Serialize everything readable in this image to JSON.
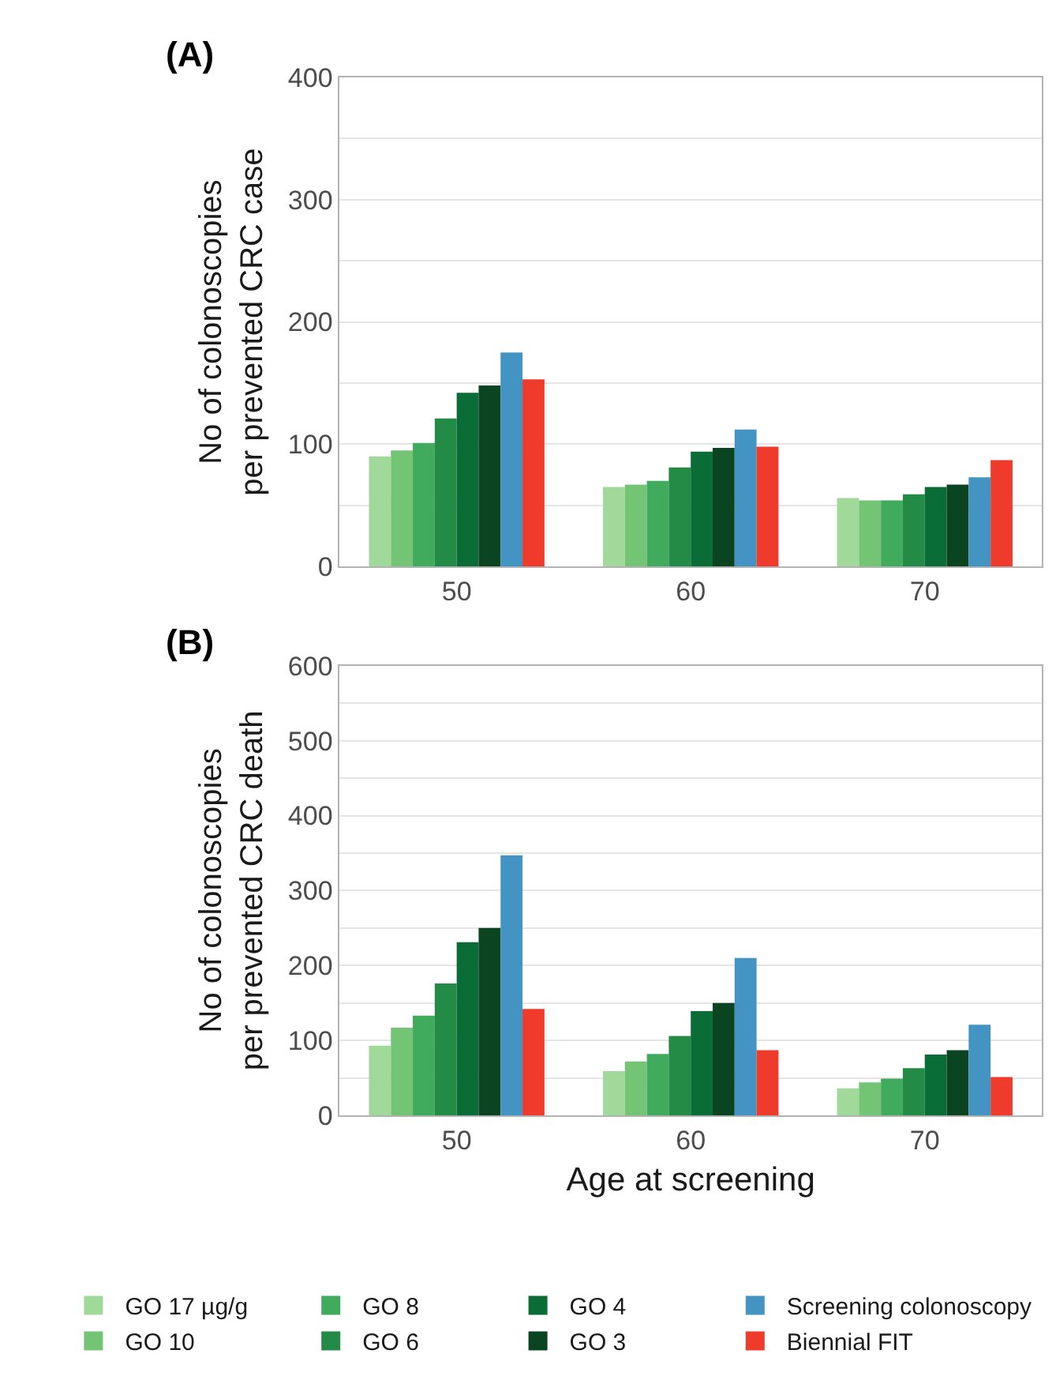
{
  "chart_data": [
    {
      "type": "bar",
      "title": "(A)",
      "ylabel": "No of colonoscopies\nper prevented CRC case",
      "categories": [
        "50",
        "60",
        "70"
      ],
      "ylim": [
        0,
        400
      ],
      "yticks": [
        0,
        {
          "value": 50,
          "label": null
        },
        100,
        {
          "value": 150,
          "label": null
        },
        200,
        {
          "value": 250,
          "label": null
        },
        300,
        {
          "value": 350,
          "label": null
        },
        400
      ],
      "grid": "y",
      "legend": "bottom",
      "series": [
        {
          "name": "GO 17 µg/g",
          "color": "#a1d99b",
          "values": [
            90,
            65,
            56
          ]
        },
        {
          "name": "GO 10",
          "color": "#74c476",
          "values": [
            95,
            67,
            54
          ]
        },
        {
          "name": "GO 8",
          "color": "#41ab5d",
          "values": [
            101,
            70,
            54
          ]
        },
        {
          "name": "GO 6",
          "color": "#238b45",
          "values": [
            121,
            81,
            59
          ]
        },
        {
          "name": "GO 4",
          "color": "#0a6d38",
          "values": [
            142,
            94,
            65
          ]
        },
        {
          "name": "GO 3",
          "color": "#0b4420",
          "values": [
            148,
            97,
            67
          ]
        },
        {
          "name": "Screening colonoscopy",
          "color": "#4393c3",
          "values": [
            175,
            112,
            73
          ]
        },
        {
          "name": "Biennial FIT",
          "color": "#ef3b2c",
          "values": [
            153,
            98,
            87
          ]
        }
      ]
    },
    {
      "type": "bar",
      "title": "(B)",
      "ylabel": "No of colonoscopies\nper prevented CRC death",
      "xlabel": "Age at screening",
      "categories": [
        "50",
        "60",
        "70"
      ],
      "ylim": [
        0,
        600
      ],
      "yticks": [
        0,
        {
          "value": 50,
          "label": null
        },
        100,
        {
          "value": 150,
          "label": null
        },
        200,
        {
          "value": 250,
          "label": null
        },
        300,
        {
          "value": 350,
          "label": null
        },
        400,
        {
          "value": 450,
          "label": null
        },
        500,
        {
          "value": 550,
          "label": null
        },
        600
      ],
      "grid": "y",
      "legend": "bottom",
      "series": [
        {
          "name": "GO 17 µg/g",
          "color": "#a1d99b",
          "values": [
            93,
            59,
            36
          ]
        },
        {
          "name": "GO 10",
          "color": "#74c476",
          "values": [
            117,
            72,
            44
          ]
        },
        {
          "name": "GO 8",
          "color": "#41ab5d",
          "values": [
            133,
            82,
            49
          ]
        },
        {
          "name": "GO 6",
          "color": "#238b45",
          "values": [
            176,
            106,
            63
          ]
        },
        {
          "name": "GO 4",
          "color": "#0a6d38",
          "values": [
            231,
            139,
            81
          ]
        },
        {
          "name": "GO 3",
          "color": "#0b4420",
          "values": [
            250,
            150,
            87
          ]
        },
        {
          "name": "Screening colonoscopy",
          "color": "#4393c3",
          "values": [
            347,
            210,
            121
          ]
        },
        {
          "name": "Biennial FIT",
          "color": "#ef3b2c",
          "values": [
            142,
            87,
            51
          ]
        }
      ]
    }
  ]
}
